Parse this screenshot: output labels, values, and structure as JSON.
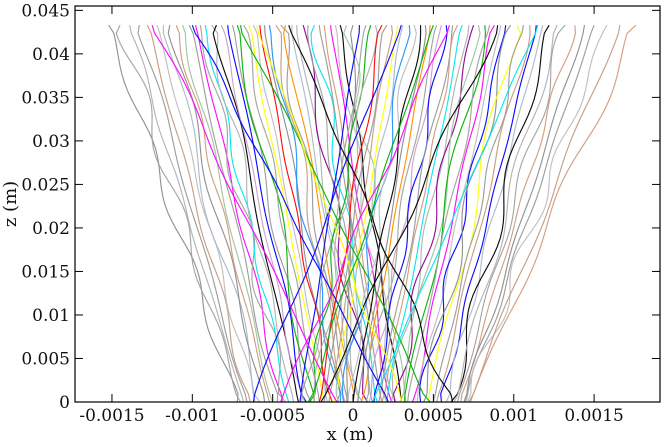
{
  "chart_data": {
    "type": "line",
    "title": "",
    "xlabel": "x (m)",
    "ylabel": "z (m)",
    "xlim": [
      -0.00173,
      0.00191
    ],
    "ylim": [
      0,
      0.0455
    ],
    "x_ticks": [
      {
        "value": -0.0015,
        "label": "-0.0015"
      },
      {
        "value": -0.001,
        "label": "-0.001"
      },
      {
        "value": -0.0005,
        "label": "-0.0005"
      },
      {
        "value": 0,
        "label": "0"
      },
      {
        "value": 0.0005,
        "label": "0.0005"
      },
      {
        "value": 0.001,
        "label": "0.001"
      },
      {
        "value": 0.0015,
        "label": "0.0015"
      }
    ],
    "y_ticks": [
      {
        "value": 0,
        "label": "0"
      },
      {
        "value": 0.005,
        "label": "0.005"
      },
      {
        "value": 0.01,
        "label": "0.01"
      },
      {
        "value": 0.015,
        "label": "0.015"
      },
      {
        "value": 0.02,
        "label": "0.02"
      },
      {
        "value": 0.025,
        "label": "0.025"
      },
      {
        "value": 0.03,
        "label": "0.03"
      },
      {
        "value": 0.035,
        "label": "0.035"
      },
      {
        "value": 0.04,
        "label": "0.04"
      },
      {
        "value": 0.045,
        "label": "0.045"
      }
    ],
    "grid": false,
    "legend": "none",
    "top_z": 0.0433,
    "palette": [
      "#999999",
      "#a0a0a0",
      "#b0b0b0",
      "#8c8c8c",
      "#bdbdbd",
      "#c49a80",
      "#a9b8c9",
      "#d19a7a",
      "#9fc29f",
      "#c9a0c9",
      "#0000ff",
      "#000000",
      "#ff00ff",
      "#00b000",
      "#00e5ee",
      "#ffff00",
      "#ff0000",
      "#ff8c00",
      "#1e90ff",
      "#8b008b"
    ],
    "series": [
      {
        "x0": -0.00152,
        "x1": -0.00072,
        "color": "#8c8c8c"
      },
      {
        "x0": -0.00145,
        "x1": -0.0007,
        "color": "#a0a0a0"
      },
      {
        "x0": -0.00139,
        "x1": -0.00068,
        "color": "#b0b0b0"
      },
      {
        "x0": -0.00133,
        "x1": -0.00066,
        "color": "#999999"
      },
      {
        "x0": -0.00128,
        "x1": -0.00064,
        "color": "#c49a80"
      },
      {
        "x0": -0.00122,
        "x1": -0.00061,
        "color": "#bdbdbd"
      },
      {
        "x0": -0.00118,
        "x1": -0.00058,
        "color": "#a9b8c9"
      },
      {
        "x0": -0.00114,
        "x1": -0.00055,
        "color": "#8c8c8c"
      },
      {
        "x0": -0.0011,
        "x1": -0.00052,
        "color": "#d19a7a"
      },
      {
        "x0": -0.00106,
        "x1": -0.0005,
        "color": "#9fc29f"
      },
      {
        "x0": -0.00102,
        "x1": -0.00047,
        "color": "#999999"
      },
      {
        "x0": -0.00098,
        "x1": -0.00044,
        "color": "#ff00ff"
      },
      {
        "x0": -0.00095,
        "x1": -0.00042,
        "color": "#a0a0a0"
      },
      {
        "x0": -0.00092,
        "x1": -0.0004,
        "color": "#00e5ee"
      },
      {
        "x0": -0.00088,
        "x1": -0.00037,
        "color": "#b0b0b0"
      },
      {
        "x0": -0.00085,
        "x1": -0.00034,
        "color": "#000000"
      },
      {
        "x0": -0.00082,
        "x1": -0.00032,
        "color": "#c9a0c9"
      },
      {
        "x0": -0.00078,
        "x1": -0.00029,
        "color": "#0000ff"
      },
      {
        "x0": -0.00075,
        "x1": -0.00026,
        "color": "#999999"
      },
      {
        "x0": -0.00072,
        "x1": -0.00024,
        "color": "#00b000"
      },
      {
        "x0": -0.00068,
        "x1": -0.00021,
        "color": "#a0a0a0"
      },
      {
        "x0": -0.00065,
        "x1": -0.00018,
        "color": "#ffff00"
      },
      {
        "x0": -0.00062,
        "x1": -0.00016,
        "color": "#bdbdbd"
      },
      {
        "x0": -0.00058,
        "x1": -0.00013,
        "color": "#ff0000"
      },
      {
        "x0": -0.00055,
        "x1": -0.0001,
        "color": "#8c8c8c"
      },
      {
        "x0": -0.00052,
        "x1": -8e-05,
        "color": "#1e90ff"
      },
      {
        "x0": -0.00048,
        "x1": -5e-05,
        "color": "#c49a80"
      },
      {
        "x0": -0.00045,
        "x1": -3e-05,
        "color": "#999999"
      },
      {
        "x0": -0.00042,
        "x1": 0.0,
        "color": "#ff8c00"
      },
      {
        "x0": -0.00038,
        "x1": 3e-05,
        "color": "#a9b8c9"
      },
      {
        "x0": -0.00035,
        "x1": 6e-05,
        "color": "#b0b0b0"
      },
      {
        "x0": -0.00031,
        "x1": 9e-05,
        "color": "#8b008b"
      },
      {
        "x0": -0.00028,
        "x1": 0.00012,
        "color": "#a0a0a0"
      },
      {
        "x0": -0.00024,
        "x1": 0.00015,
        "color": "#00e5ee"
      },
      {
        "x0": -0.00021,
        "x1": 0.00018,
        "color": "#999999"
      },
      {
        "x0": -0.00018,
        "x1": 0.00021,
        "color": "#d19a7a"
      },
      {
        "x0": -0.00014,
        "x1": 0.00024,
        "color": "#ff00ff"
      },
      {
        "x0": -0.00011,
        "x1": 0.00027,
        "color": "#bdbdbd"
      },
      {
        "x0": -8e-05,
        "x1": 0.0003,
        "color": "#000000"
      },
      {
        "x0": -4e-05,
        "x1": 0.00033,
        "color": "#9fc29f"
      },
      {
        "x0": 0.0,
        "x1": -4e-05,
        "color": "#8c8c8c"
      },
      {
        "x0": 4e-05,
        "x1": -0.00033,
        "color": "#0000ff"
      },
      {
        "x0": 8e-05,
        "x1": -0.0003,
        "color": "#a0a0a0"
      },
      {
        "x0": 0.00011,
        "x1": -0.00027,
        "color": "#00b000"
      },
      {
        "x0": 0.00014,
        "x1": -0.00024,
        "color": "#b0b0b0"
      },
      {
        "x0": 0.00018,
        "x1": -0.00021,
        "color": "#ff0000"
      },
      {
        "x0": 0.00021,
        "x1": -0.00018,
        "color": "#999999"
      },
      {
        "x0": 0.00024,
        "x1": -0.00015,
        "color": "#c49a80"
      },
      {
        "x0": 0.00028,
        "x1": -0.00012,
        "color": "#ffff00"
      },
      {
        "x0": 0.00031,
        "x1": -9e-05,
        "color": "#a9b8c9"
      },
      {
        "x0": 0.00035,
        "x1": -6e-05,
        "color": "#1e90ff"
      },
      {
        "x0": 0.00038,
        "x1": -3e-05,
        "color": "#bdbdbd"
      },
      {
        "x0": 0.00042,
        "x1": 0.0,
        "color": "#000000"
      },
      {
        "x0": 0.00045,
        "x1": 3e-05,
        "color": "#8c8c8c"
      },
      {
        "x0": 0.00048,
        "x1": 5e-05,
        "color": "#ff8c00"
      },
      {
        "x0": 0.00052,
        "x1": 8e-05,
        "color": "#a0a0a0"
      },
      {
        "x0": 0.00055,
        "x1": 0.0001,
        "color": "#c9a0c9"
      },
      {
        "x0": 0.00058,
        "x1": 0.00013,
        "color": "#0000ff"
      },
      {
        "x0": 0.00062,
        "x1": 0.00016,
        "color": "#999999"
      },
      {
        "x0": 0.00065,
        "x1": 0.00018,
        "color": "#d19a7a"
      },
      {
        "x0": 0.00068,
        "x1": 0.00021,
        "color": "#00e5ee"
      },
      {
        "x0": 0.00072,
        "x1": 0.00024,
        "color": "#b0b0b0"
      },
      {
        "x0": 0.00075,
        "x1": 0.00026,
        "color": "#8b008b"
      },
      {
        "x0": 0.00078,
        "x1": 0.00029,
        "color": "#9fc29f"
      },
      {
        "x0": 0.00082,
        "x1": 0.00032,
        "color": "#00b000"
      },
      {
        "x0": 0.00085,
        "x1": 0.00034,
        "color": "#a0a0a0"
      },
      {
        "x0": 0.00088,
        "x1": 0.00037,
        "color": "#ff00ff"
      },
      {
        "x0": 0.00092,
        "x1": 0.0004,
        "color": "#bdbdbd"
      },
      {
        "x0": 0.00095,
        "x1": 0.00042,
        "color": "#0000ff"
      },
      {
        "x0": 0.00098,
        "x1": 0.00044,
        "color": "#8c8c8c"
      },
      {
        "x0": 0.00102,
        "x1": 0.00047,
        "color": "#ffff00"
      },
      {
        "x0": 0.00106,
        "x1": 0.0005,
        "color": "#999999"
      },
      {
        "x0": 0.0011,
        "x1": 0.00052,
        "color": "#c49a80"
      },
      {
        "x0": 0.00114,
        "x1": 0.00055,
        "color": "#0000ff"
      },
      {
        "x0": 0.00118,
        "x1": 0.00058,
        "color": "#a9b8c9"
      },
      {
        "x0": 0.00122,
        "x1": 0.00061,
        "color": "#000000"
      },
      {
        "x0": 0.00127,
        "x1": 0.00063,
        "color": "#b0b0b0"
      },
      {
        "x0": 0.00132,
        "x1": 0.00065,
        "color": "#a0a0a0"
      },
      {
        "x0": 0.00138,
        "x1": 0.00067,
        "color": "#d19a7a"
      },
      {
        "x0": 0.00144,
        "x1": 0.00069,
        "color": "#8c8c8c"
      },
      {
        "x0": 0.0015,
        "x1": 0.0007,
        "color": "#999999"
      },
      {
        "x0": 0.00158,
        "x1": 0.00071,
        "color": "#bdbdbd"
      },
      {
        "x0": 0.00166,
        "x1": 0.00072,
        "color": "#c49a80"
      },
      {
        "x0": 0.00176,
        "x1": 0.00073,
        "color": "#d19a7a"
      },
      {
        "x0": -0.001,
        "x1": 0.00022,
        "color": "#0000ff"
      },
      {
        "x0": -0.0007,
        "x1": 0.00048,
        "color": "#00b000"
      },
      {
        "x0": -0.0004,
        "x1": 0.00062,
        "color": "#000000"
      },
      {
        "x0": 0.0003,
        "x1": -0.00062,
        "color": "#0000ff"
      },
      {
        "x0": 0.0006,
        "x1": -0.00045,
        "color": "#ff00ff"
      },
      {
        "x0": 0.0009,
        "x1": -0.0002,
        "color": "#000000"
      },
      {
        "x0": -0.00125,
        "x1": -0.0001,
        "color": "#ff00ff"
      },
      {
        "x0": 0.00115,
        "x1": 0.00012,
        "color": "#00e5ee"
      },
      {
        "x0": -0.0006,
        "x1": 0.0003,
        "color": "#ffff00"
      },
      {
        "x0": 0.0005,
        "x1": -0.00028,
        "color": "#00b000"
      }
    ]
  }
}
